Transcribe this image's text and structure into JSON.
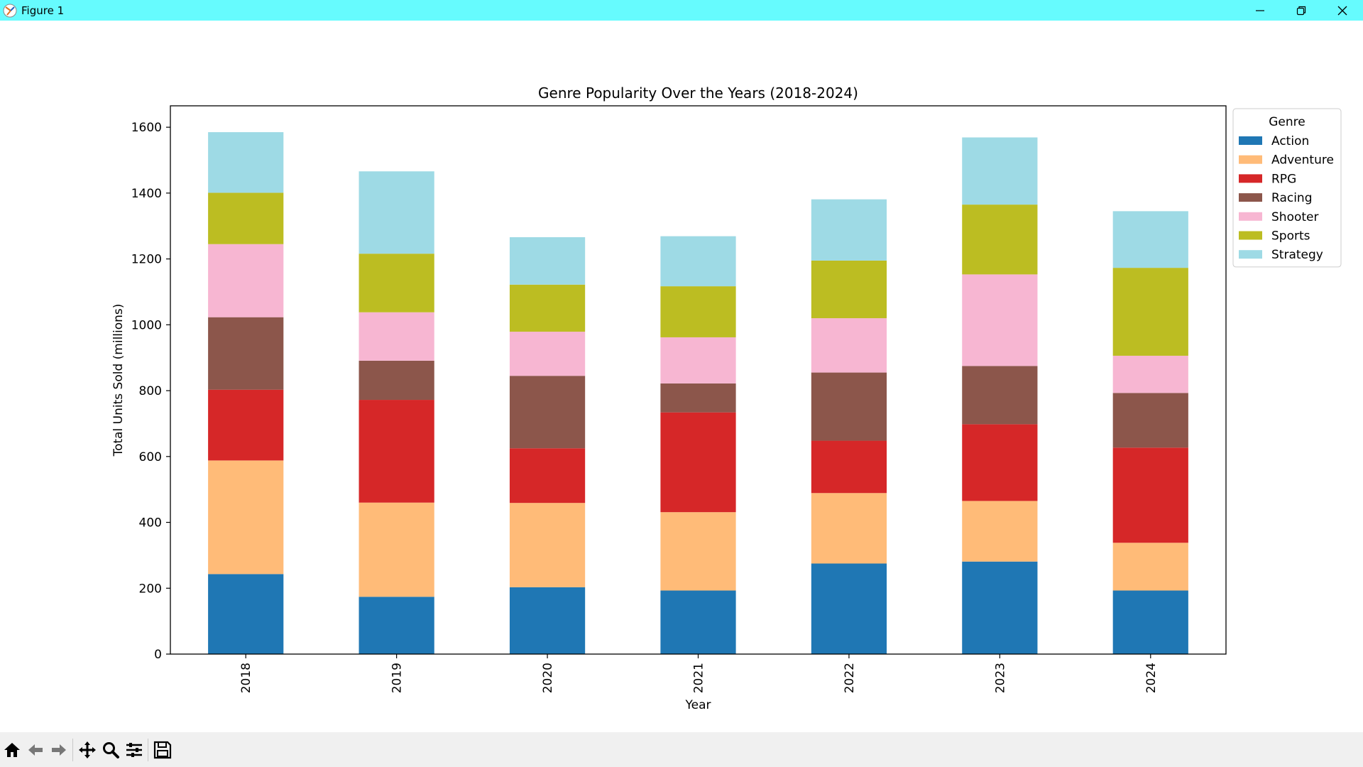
{
  "window": {
    "title": "Figure 1",
    "controls": [
      "minimize-icon",
      "restore-icon",
      "close-icon"
    ]
  },
  "toolbar": {
    "buttons": [
      "home-icon",
      "back-icon",
      "forward-icon",
      "pan-icon",
      "zoom-icon",
      "configure-subplots-icon",
      "save-icon"
    ]
  },
  "chart_data": {
    "type": "bar",
    "stacked": true,
    "title": "Genre Popularity Over the Years (2018-2024)",
    "xlabel": "Year",
    "ylabel": "Total Units Sold (millions)",
    "categories": [
      "2018",
      "2019",
      "2020",
      "2021",
      "2022",
      "2023",
      "2024"
    ],
    "ylim": [
      0,
      1665
    ],
    "yticks": [
      0,
      200,
      400,
      600,
      800,
      1000,
      1200,
      1400,
      1600
    ],
    "grid": false,
    "legend": {
      "title": "Genre",
      "placement": "outside top-right"
    },
    "series": [
      {
        "name": "Action",
        "color": "#1f77b4",
        "values": [
          243,
          174,
          203,
          193,
          275,
          281,
          193
        ]
      },
      {
        "name": "Adventure",
        "color": "#ffbb78",
        "values": [
          345,
          286,
          256,
          238,
          214,
          184,
          145
        ]
      },
      {
        "name": "RPG",
        "color": "#d62728",
        "values": [
          215,
          312,
          166,
          303,
          159,
          233,
          289
        ]
      },
      {
        "name": "Racing",
        "color": "#8c564b",
        "values": [
          220,
          119,
          220,
          88,
          207,
          177,
          166
        ]
      },
      {
        "name": "Shooter",
        "color": "#f7b6d2",
        "values": [
          222,
          147,
          134,
          140,
          165,
          278,
          113
        ]
      },
      {
        "name": "Sports",
        "color": "#bcbd22",
        "values": [
          156,
          178,
          143,
          155,
          175,
          212,
          267
        ]
      },
      {
        "name": "Strategy",
        "color": "#9edae5",
        "values": [
          184,
          250,
          144,
          152,
          186,
          204,
          172
        ]
      }
    ]
  }
}
